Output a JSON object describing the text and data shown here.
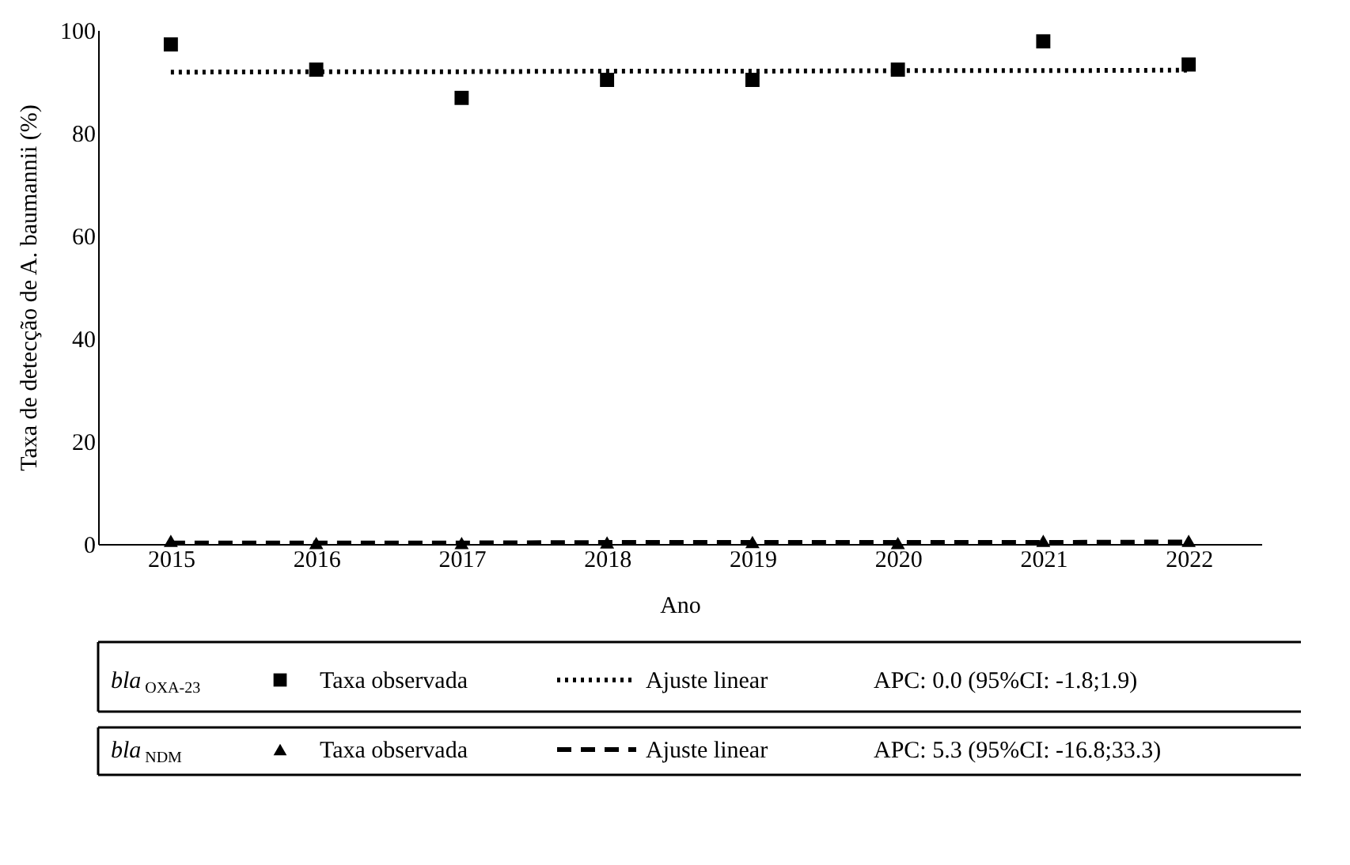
{
  "chart_data": {
    "type": "scatter",
    "xlabel": "Ano",
    "ylabel": "Taxa de detecção de A. baumannii (%)",
    "categories": [
      "2015",
      "2016",
      "2017",
      "2018",
      "2019",
      "2020",
      "2021",
      "2022"
    ],
    "series": [
      {
        "name": "Taxa observada",
        "marker": "square",
        "color": "#000000",
        "values": [
          97.2,
          92.3,
          86.8,
          90.3,
          90.3,
          92.3,
          97.8,
          93.3
        ]
      },
      {
        "name": "Ajuste linear",
        "type": "line",
        "marker": "none",
        "line_style": "dotted",
        "color": "#000000",
        "values": [
          91.8,
          91.9,
          91.9,
          92.0,
          92.0,
          92.1,
          92.1,
          92.2
        ]
      },
      {
        "name": "Taxa observada",
        "marker": "triangle",
        "color": "#000000",
        "values": [
          0.6,
          0.2,
          0.2,
          0.3,
          0.4,
          0.2,
          0.6,
          0.6
        ]
      },
      {
        "name": "Ajuste linear",
        "type": "line",
        "marker": "none",
        "line_style": "dashed",
        "color": "#000000",
        "values": [
          0.2,
          0.2,
          0.2,
          0.3,
          0.3,
          0.3,
          0.3,
          0.4
        ]
      }
    ],
    "annotations": [
      "bla$_{OXA-23}$",
      "APC: 0.0 (95%CI: -1.8;1.9)",
      "bla$_{NDM}$",
      "APC: 5.3 (95%CI: -16.8;33.3)"
    ],
    "ylim": [
      0,
      100
    ],
    "yticks": [
      0,
      20,
      40,
      60,
      80,
      100
    ],
    "grid": false,
    "legend": "bottom"
  }
}
